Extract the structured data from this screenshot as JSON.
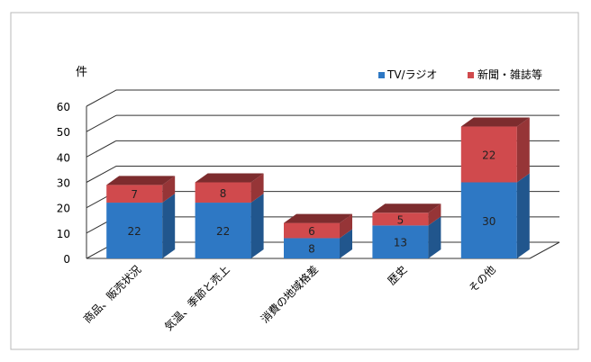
{
  "chart_data": {
    "type": "bar",
    "stacked": true,
    "style": "3d",
    "ylabel": "件",
    "ylim": [
      0,
      60
    ],
    "yticks": [
      0,
      10,
      20,
      30,
      40,
      50,
      60
    ],
    "grid": true,
    "legend_position": "top-right",
    "categories": [
      "商品、販売状況",
      "気温、季節と売上",
      "消費の地域格差",
      "歴史",
      "その他"
    ],
    "series": [
      {
        "name": "TV/ラジオ",
        "values": [
          22,
          22,
          8,
          13,
          30
        ],
        "color": "#2e78c4"
      },
      {
        "name": "新聞・雑誌等",
        "values": [
          7,
          8,
          6,
          5,
          22
        ],
        "color": "#d04a4d"
      }
    ]
  }
}
